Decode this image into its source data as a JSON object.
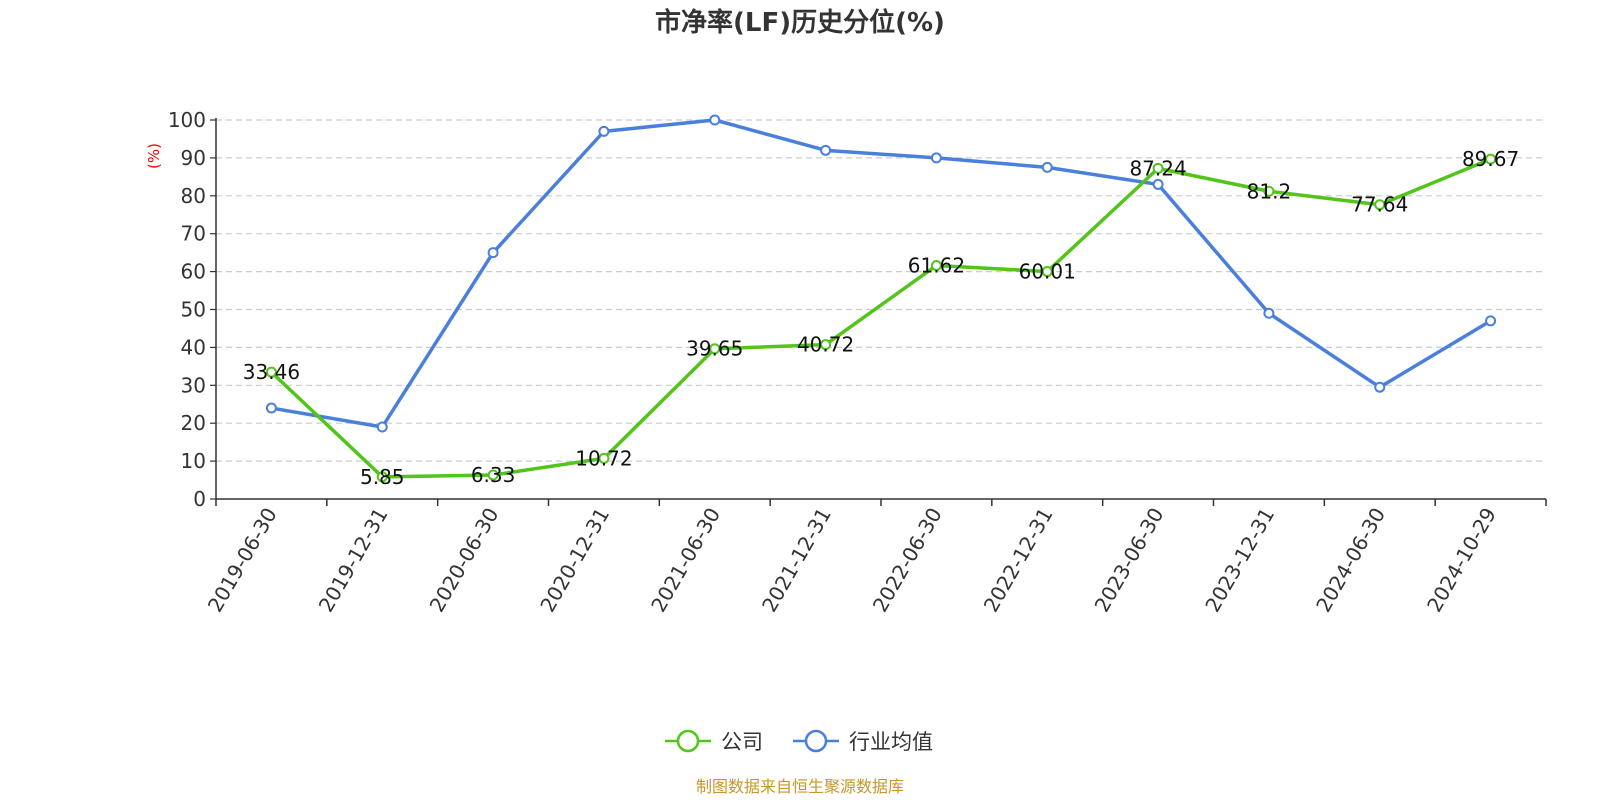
{
  "chart_data": {
    "type": "line",
    "title": "市净率(LF)历史分位(%)",
    "ylabel": "(%)",
    "ylim": [
      0,
      100
    ],
    "yticks": [
      0,
      10,
      20,
      30,
      40,
      50,
      60,
      70,
      80,
      90,
      100
    ],
    "categories": [
      "2019-06-30",
      "2019-12-31",
      "2020-06-30",
      "2020-12-31",
      "2021-06-30",
      "2021-12-31",
      "2022-06-30",
      "2022-12-31",
      "2023-06-30",
      "2023-12-31",
      "2024-06-30",
      "2024-10-29"
    ],
    "series": [
      {
        "name": "公司",
        "values": [
          33.46,
          5.85,
          6.33,
          10.72,
          39.65,
          40.72,
          61.62,
          60.01,
          87.24,
          81.2,
          77.64,
          89.67
        ],
        "show_labels": true
      },
      {
        "name": "行业均值",
        "values": [
          24,
          19,
          65,
          97,
          100,
          92,
          90,
          87.5,
          83,
          49,
          29.5,
          47
        ],
        "show_labels": false
      }
    ],
    "grid": true,
    "legend_position": "bottom-center"
  },
  "colors": {
    "series": [
      "#52c41a",
      "#4a7fdc"
    ],
    "ylabel": "#ff0000",
    "source": "#c8962a",
    "grid": "#cccccc",
    "axis": "#333333"
  },
  "source_note": "制图数据来自恒生聚源数据库"
}
